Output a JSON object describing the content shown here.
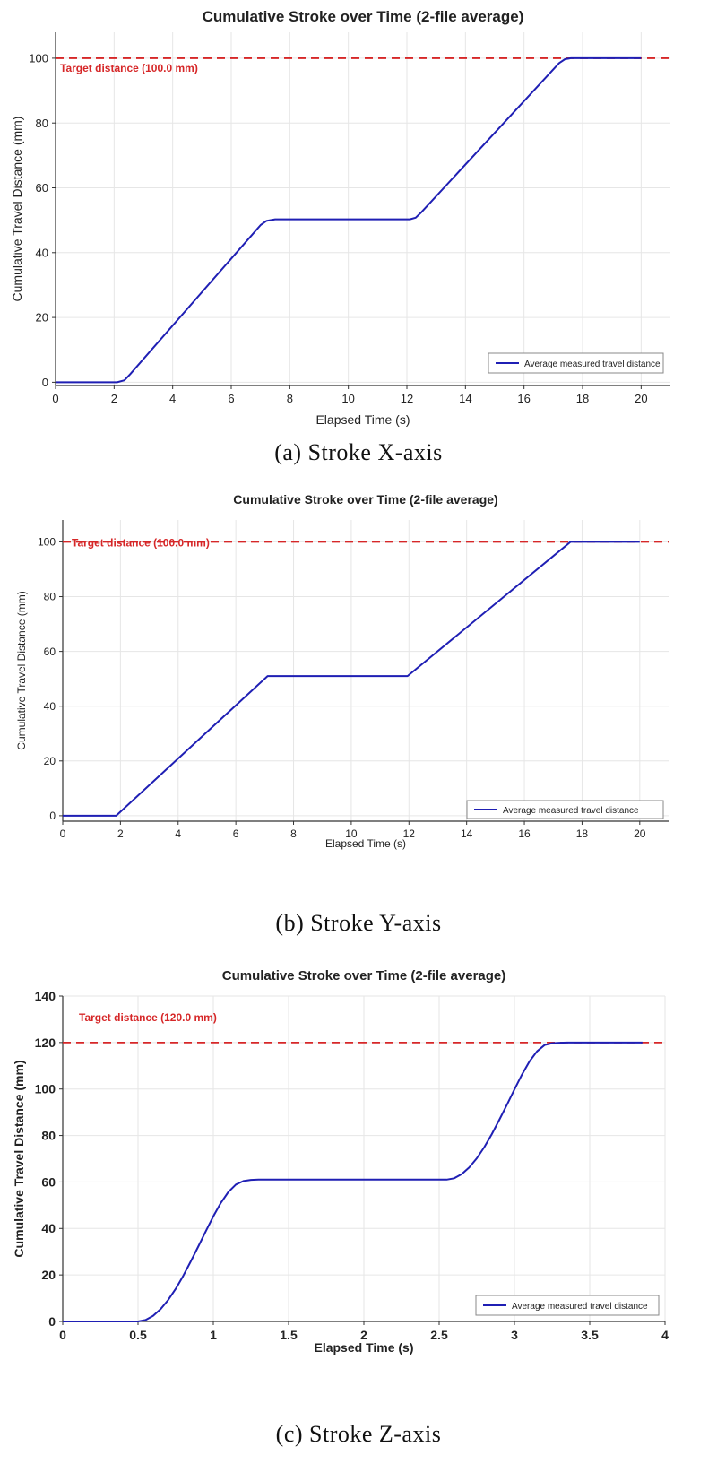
{
  "colors": {
    "series": "#1f1fb4",
    "target": "#d62728",
    "grid": "#e6e6e6",
    "axis": "#333333",
    "text": "#222222"
  },
  "chart_data": [
    {
      "type": "line",
      "title": "Cumulative Stroke over Time (2-file average)",
      "xlabel": "Elapsed Time (s)",
      "ylabel": "Cumulative Travel Distance (mm)",
      "xlim": [
        0,
        21
      ],
      "ylim": [
        -1,
        108
      ],
      "xticks": [
        0,
        2,
        4,
        6,
        8,
        10,
        12,
        14,
        16,
        18,
        20
      ],
      "yticks": [
        0,
        20,
        40,
        60,
        80,
        100
      ],
      "grid": true,
      "legend_position": "bottom-right",
      "target": {
        "value": 100,
        "label": "Target distance (100.0 mm)"
      },
      "series": [
        {
          "name": "Average measured travel distance",
          "x": [
            0,
            2.1,
            2.35,
            2.55,
            7.0,
            7.2,
            7.5,
            12.1,
            12.3,
            12.5,
            17.2,
            17.4,
            17.6,
            20
          ],
          "y": [
            0,
            0,
            0.6,
            2.5,
            48.5,
            49.8,
            50.3,
            50.3,
            50.8,
            52.5,
            98.5,
            99.7,
            100,
            100
          ]
        }
      ],
      "caption": "(a) Stroke X-axis"
    },
    {
      "type": "line",
      "title": "Cumulative Stroke over Time (2-file average)",
      "xlabel": "Elapsed Time (s)",
      "ylabel": "Cumulative Travel Distance (mm)",
      "xlim": [
        0,
        21
      ],
      "ylim": [
        -2,
        108
      ],
      "xticks": [
        0,
        2,
        4,
        6,
        8,
        10,
        12,
        14,
        16,
        18,
        20
      ],
      "yticks": [
        0,
        20,
        40,
        60,
        80,
        100
      ],
      "grid": true,
      "legend_position": "bottom-right",
      "target": {
        "value": 100,
        "label": "Target distance (100.0 mm)"
      },
      "series": [
        {
          "name": "Average measured travel distance",
          "x": [
            0,
            1.85,
            7.1,
            11.95,
            17.6,
            20
          ],
          "y": [
            0,
            0,
            51,
            51,
            100,
            100
          ]
        }
      ],
      "caption": "(b) Stroke Y-axis"
    },
    {
      "type": "line",
      "title": "Cumulative Stroke over Time (2-file average)",
      "xlabel": "Elapsed Time (s)",
      "ylabel": "Cumulative Travel Distance (mm)",
      "xlim": [
        0,
        4
      ],
      "ylim": [
        0,
        140
      ],
      "xticks": [
        0,
        0.5,
        1,
        1.5,
        2,
        2.5,
        3,
        3.5,
        4
      ],
      "xtick_labels": [
        "0",
        "0.5",
        "1",
        "1.5",
        "2",
        "2.5",
        "3",
        "3.5",
        "4"
      ],
      "yticks": [
        0,
        20,
        40,
        60,
        80,
        100,
        120,
        140
      ],
      "grid": true,
      "legend_position": "bottom-right",
      "target": {
        "value": 120,
        "label": "Target distance (120.0 mm)"
      },
      "series": [
        {
          "name": "Average measured travel distance",
          "x": [
            0,
            0.5,
            0.55,
            0.6,
            0.65,
            0.7,
            0.75,
            0.8,
            0.85,
            0.9,
            0.95,
            1.0,
            1.05,
            1.1,
            1.15,
            1.2,
            1.25,
            1.3,
            1.35,
            2.55,
            2.6,
            2.65,
            2.7,
            2.75,
            2.8,
            2.85,
            2.9,
            2.95,
            3.0,
            3.05,
            3.1,
            3.15,
            3.2,
            3.25,
            3.3,
            3.35,
            3.4,
            3.85
          ],
          "y": [
            0,
            0,
            0.6,
            2.4,
            5.3,
            9.2,
            14.0,
            19.6,
            25.8,
            32.2,
            38.8,
            45.2,
            51.0,
            55.7,
            58.9,
            60.4,
            60.9,
            61.0,
            61.0,
            61.0,
            61.6,
            63.4,
            66.3,
            70.2,
            75.0,
            80.6,
            86.8,
            93.2,
            99.8,
            106.2,
            111.9,
            116.2,
            118.9,
            119.7,
            119.9,
            120.0,
            120.0,
            120.0
          ]
        }
      ],
      "caption": "(c) Stroke Z-axis"
    }
  ]
}
